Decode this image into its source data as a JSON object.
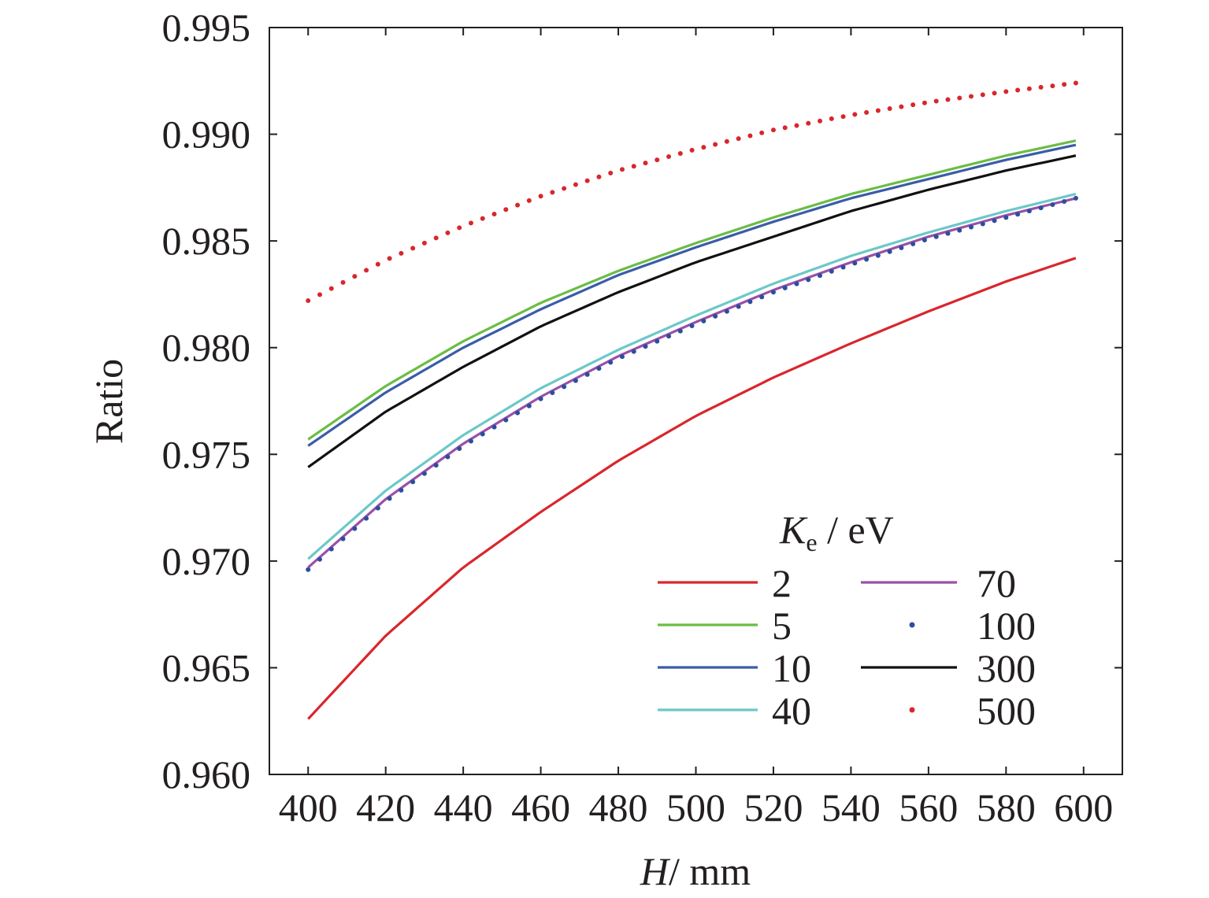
{
  "chart_data": {
    "type": "line",
    "title": "",
    "xlabel": {
      "var": "H",
      "unit": "/ mm"
    },
    "ylabel": "Ratio",
    "xlim": [
      390,
      610
    ],
    "ylim": [
      0.96,
      0.995
    ],
    "x_ticks": [
      400,
      420,
      440,
      460,
      480,
      500,
      520,
      540,
      560,
      580,
      600
    ],
    "y_ticks": [
      0.96,
      0.965,
      0.97,
      0.975,
      0.98,
      0.985,
      0.99,
      0.995
    ],
    "x_tick_labels": [
      "400",
      "420",
      "440",
      "460",
      "480",
      "500",
      "520",
      "540",
      "560",
      "580",
      "600"
    ],
    "y_tick_labels": [
      "0.960",
      "0.965",
      "0.970",
      "0.975",
      "0.980",
      "0.985",
      "0.990",
      "0.995"
    ],
    "grid": false,
    "legend": {
      "title_var": "K",
      "title_sub": "e",
      "title_unit": " / eV",
      "placement": "bottom-right",
      "columns": 2
    },
    "x": [
      400,
      420,
      440,
      460,
      480,
      500,
      520,
      540,
      560,
      580,
      598
    ],
    "series": [
      {
        "name": "2",
        "color": "#d9262c",
        "style": "line",
        "values": [
          0.9626,
          0.9665,
          0.9697,
          0.9723,
          0.9747,
          0.9768,
          0.9786,
          0.9802,
          0.9817,
          0.9831,
          0.9842
        ]
      },
      {
        "name": "5",
        "color": "#6abd45",
        "style": "line",
        "values": [
          0.9757,
          0.9782,
          0.9803,
          0.9821,
          0.9836,
          0.9849,
          0.9861,
          0.9872,
          0.9881,
          0.989,
          0.9897
        ]
      },
      {
        "name": "10",
        "color": "#3a5ca8",
        "style": "line",
        "values": [
          0.9754,
          0.9779,
          0.98,
          0.9818,
          0.9834,
          0.9847,
          0.9859,
          0.987,
          0.9879,
          0.9888,
          0.9895
        ]
      },
      {
        "name": "40",
        "color": "#6cc8c8",
        "style": "line",
        "values": [
          0.9701,
          0.9733,
          0.9759,
          0.9781,
          0.9799,
          0.9815,
          0.983,
          0.9843,
          0.9854,
          0.9864,
          0.9872
        ]
      },
      {
        "name": "70",
        "color": "#9b4fa8",
        "style": "line",
        "values": [
          0.9697,
          0.9729,
          0.9755,
          0.9777,
          0.9796,
          0.9812,
          0.9827,
          0.984,
          0.9852,
          0.9862,
          0.987
        ]
      },
      {
        "name": "100",
        "color": "#2b4f9e",
        "style": "dots",
        "values": [
          0.9696,
          0.9728,
          0.9754,
          0.9776,
          0.9795,
          0.9811,
          0.9826,
          0.9839,
          0.9851,
          0.9861,
          0.987
        ]
      },
      {
        "name": "300",
        "color": "#111111",
        "style": "line",
        "values": [
          0.9744,
          0.977,
          0.9791,
          0.981,
          0.9826,
          0.984,
          0.9852,
          0.9864,
          0.9874,
          0.9883,
          0.989
        ]
      },
      {
        "name": "500",
        "color": "#d9262c",
        "style": "dots",
        "values": [
          0.9822,
          0.9841,
          0.9857,
          0.9871,
          0.9883,
          0.9893,
          0.9902,
          0.9909,
          0.9915,
          0.992,
          0.9924
        ]
      }
    ]
  }
}
